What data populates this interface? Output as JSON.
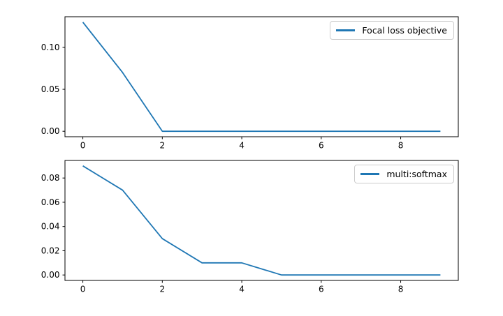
{
  "figure": {
    "background": "#ffffff",
    "text_color": "#000000",
    "spine_color": "#000000",
    "legend_border_color": "#cccccc"
  },
  "chart_data": [
    {
      "type": "line",
      "legend": "Focal loss objective",
      "legend_position": "upper right",
      "line_color": "#1f77b4",
      "x": [
        0,
        1,
        2,
        3,
        4,
        5,
        6,
        7,
        8,
        9
      ],
      "values": [
        0.13,
        0.07,
        0.0,
        0.0,
        0.0,
        0.0,
        0.0,
        0.0,
        0.0,
        0.0
      ],
      "xlim": [
        -0.45,
        9.45
      ],
      "ylim": [
        -0.0065,
        0.1365
      ],
      "xticks": [
        0,
        2,
        4,
        6,
        8
      ],
      "xtick_labels": [
        "0",
        "2",
        "4",
        "6",
        "8"
      ],
      "yticks": [
        0.0,
        0.05,
        0.1
      ],
      "ytick_labels": [
        "0.00",
        "0.05",
        "0.10"
      ],
      "grid": false,
      "title": "",
      "xlabel": "",
      "ylabel": ""
    },
    {
      "type": "line",
      "legend": "multi:softmax",
      "legend_position": "upper right",
      "line_color": "#1f77b4",
      "x": [
        0,
        1,
        2,
        3,
        4,
        5,
        6,
        7,
        8,
        9
      ],
      "values": [
        0.09,
        0.07,
        0.03,
        0.01,
        0.01,
        0.0,
        0.0,
        0.0,
        0.0,
        0.0
      ],
      "xlim": [
        -0.45,
        9.45
      ],
      "ylim": [
        -0.0045,
        0.0945
      ],
      "xticks": [
        0,
        2,
        4,
        6,
        8
      ],
      "xtick_labels": [
        "0",
        "2",
        "4",
        "6",
        "8"
      ],
      "yticks": [
        0.0,
        0.02,
        0.04,
        0.06,
        0.08
      ],
      "ytick_labels": [
        "0.00",
        "0.02",
        "0.04",
        "0.06",
        "0.08"
      ],
      "grid": false,
      "title": "",
      "xlabel": "",
      "ylabel": ""
    }
  ]
}
